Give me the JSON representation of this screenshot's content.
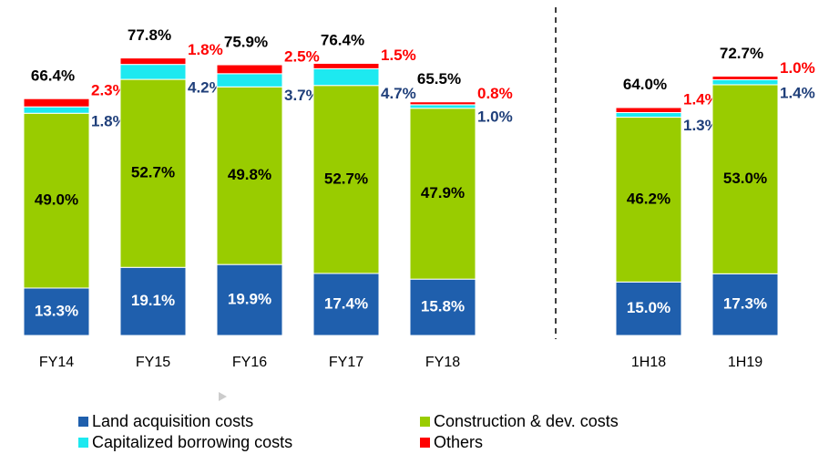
{
  "chart_data": {
    "type": "stacked_bar",
    "categories": [
      "FY14",
      "FY15",
      "FY16",
      "FY17",
      "FY18",
      "1H18",
      "1H19"
    ],
    "series": [
      {
        "name": "Land acquisition costs",
        "color": "#1f5fad",
        "values": [
          13.3,
          19.1,
          19.9,
          17.4,
          15.8,
          15.0,
          17.3
        ],
        "value_labels": [
          "13.3%",
          "19.1%",
          "19.9%",
          "17.4%",
          "15.8%",
          "15.0%",
          "17.3%"
        ]
      },
      {
        "name": "Construction & dev. costs",
        "color": "#99cc00",
        "values": [
          49.0,
          52.7,
          49.8,
          52.7,
          47.9,
          46.2,
          53.0
        ],
        "value_labels": [
          "49.0%",
          "52.7%",
          "49.8%",
          "52.7%",
          "47.9%",
          "46.2%",
          "53.0%"
        ]
      },
      {
        "name": "Capitalized borrowing costs",
        "color": "#1de9f0",
        "values": [
          1.8,
          4.2,
          3.7,
          4.7,
          1.0,
          1.3,
          1.4
        ],
        "value_labels": [
          "1.8%",
          "4.2%",
          "3.7%",
          "4.7%",
          "1.0%",
          "1.3%",
          "1.4%"
        ]
      },
      {
        "name": "Others",
        "color": "#ff0000",
        "values": [
          2.3,
          1.8,
          2.5,
          1.5,
          0.8,
          1.4,
          1.0
        ],
        "value_labels": [
          "2.3%",
          "1.8%",
          "2.5%",
          "1.5%",
          "0.8%",
          "1.4%",
          "1.0%"
        ]
      }
    ],
    "totals": [
      66.4,
      77.8,
      75.9,
      76.4,
      65.5,
      64.0,
      72.7
    ],
    "total_labels": [
      "66.4%",
      "77.8%",
      "75.9%",
      "76.4%",
      "65.5%",
      "64.0%",
      "72.7%"
    ],
    "ylim": [
      0,
      80
    ]
  }
}
